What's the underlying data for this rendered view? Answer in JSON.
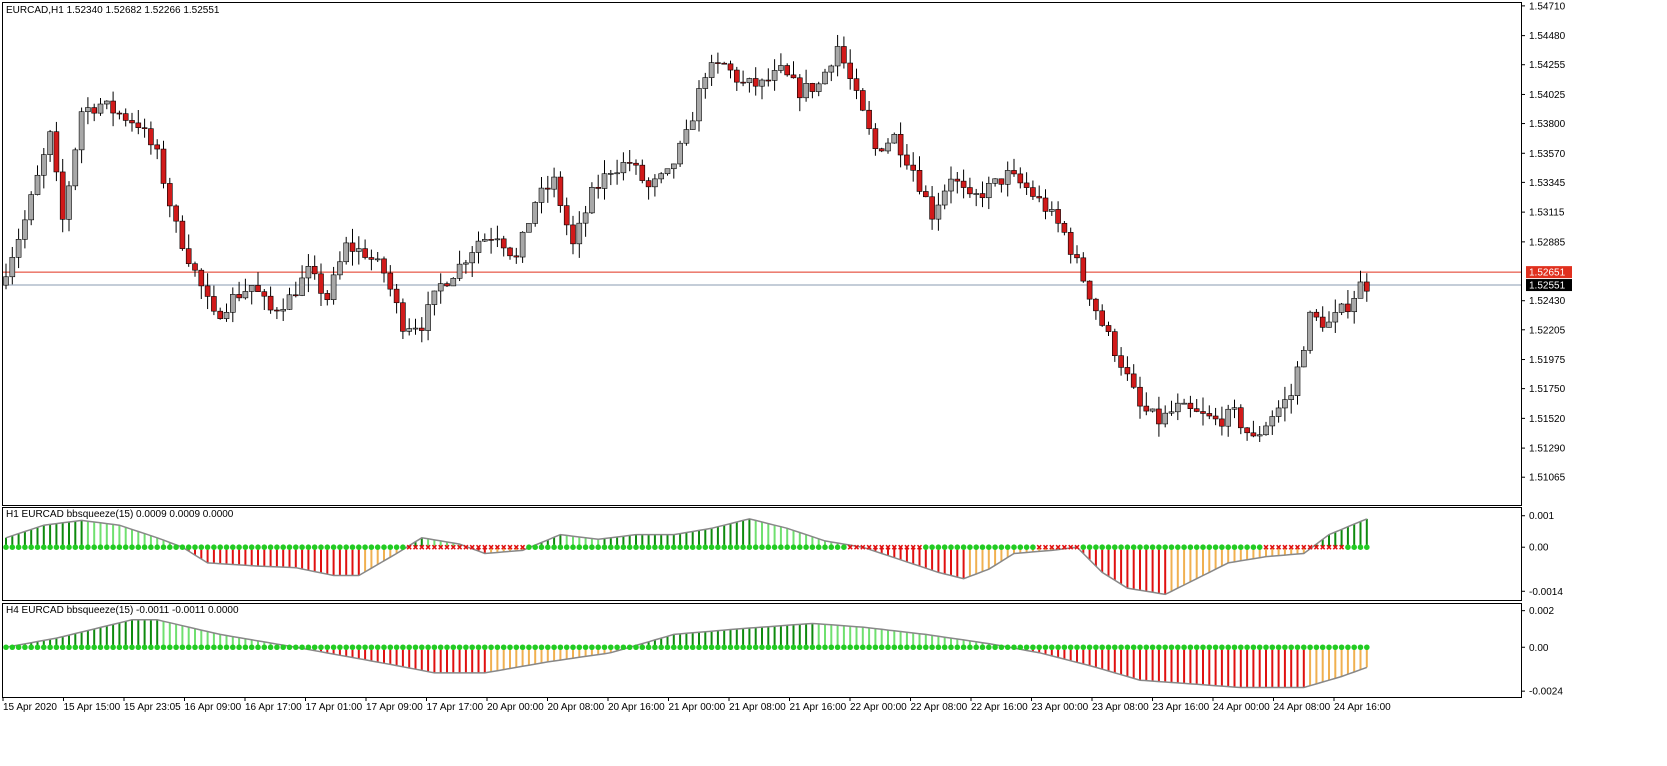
{
  "chart_data": [
    {
      "type": "candlestick",
      "title": "EURCAD,H1  1.52340 1.52682 1.52266 1.52551",
      "ylim": [
        1.5085,
        1.5474
      ],
      "y_ticks": [
        "1.54710",
        "1.54480",
        "1.54255",
        "1.54025",
        "1.53800",
        "1.53570",
        "1.53345",
        "1.53115",
        "1.52885",
        "1.52430",
        "1.52205",
        "1.51975",
        "1.51750",
        "1.51520",
        "1.51290",
        "1.51065"
      ],
      "h_lines": [
        {
          "label": "1.52651",
          "value": 1.52651,
          "color": "#e0301e"
        },
        {
          "label": "1.52551",
          "value": 1.52551,
          "color": "#8a9bb0"
        }
      ],
      "bull_color": "#a8a8a8",
      "bear_color": "#d11a1a",
      "anchors": [
        [
          0,
          1.5255
        ],
        [
          4,
          1.5305
        ],
        [
          8,
          1.537
        ],
        [
          10,
          1.5305
        ],
        [
          13,
          1.539
        ],
        [
          16,
          1.5395
        ],
        [
          18,
          1.539
        ],
        [
          22,
          1.538
        ],
        [
          25,
          1.5355
        ],
        [
          28,
          1.53
        ],
        [
          31,
          1.5265
        ],
        [
          34,
          1.523
        ],
        [
          37,
          1.5245
        ],
        [
          40,
          1.5255
        ],
        [
          43,
          1.5235
        ],
        [
          46,
          1.5245
        ],
        [
          49,
          1.5265
        ],
        [
          52,
          1.5245
        ],
        [
          55,
          1.5285
        ],
        [
          58,
          1.528
        ],
        [
          61,
          1.5265
        ],
        [
          64,
          1.5225
        ],
        [
          67,
          1.5225
        ],
        [
          70,
          1.5255
        ],
        [
          73,
          1.527
        ],
        [
          76,
          1.529
        ],
        [
          79,
          1.5295
        ],
        [
          82,
          1.5275
        ],
        [
          85,
          1.532
        ],
        [
          88,
          1.5335
        ],
        [
          91,
          1.5285
        ],
        [
          94,
          1.5325
        ],
        [
          97,
          1.5345
        ],
        [
          100,
          1.535
        ],
        [
          103,
          1.533
        ],
        [
          106,
          1.534
        ],
        [
          109,
          1.537
        ],
        [
          112,
          1.542
        ],
        [
          115,
          1.5425
        ],
        [
          118,
          1.541
        ],
        [
          121,
          1.541
        ],
        [
          124,
          1.542
        ],
        [
          127,
          1.5405
        ],
        [
          130,
          1.541
        ],
        [
          133,
          1.544
        ],
        [
          136,
          1.54
        ],
        [
          139,
          1.536
        ],
        [
          142,
          1.537
        ],
        [
          145,
          1.5345
        ],
        [
          148,
          1.531
        ],
        [
          151,
          1.534
        ],
        [
          154,
          1.532
        ],
        [
          157,
          1.533
        ],
        [
          160,
          1.534
        ],
        [
          163,
          1.533
        ],
        [
          166,
          1.5315
        ],
        [
          169,
          1.5295
        ],
        [
          172,
          1.526
        ],
        [
          175,
          1.5225
        ],
        [
          178,
          1.5195
        ],
        [
          181,
          1.516
        ],
        [
          184,
          1.515
        ],
        [
          187,
          1.516
        ],
        [
          190,
          1.5155
        ],
        [
          193,
          1.515
        ],
        [
          196,
          1.5155
        ],
        [
          199,
          1.5135
        ],
        [
          202,
          1.5155
        ],
        [
          205,
          1.517
        ],
        [
          208,
          1.523
        ],
        [
          211,
          1.5225
        ],
        [
          214,
          1.524
        ],
        [
          216,
          1.5255
        ]
      ]
    },
    {
      "type": "histogram",
      "title": "H1 EURCAD bbsqueeze(15) 0.0009 0.0009 0.0000",
      "ylim": [
        -0.00155,
        0.00115
      ],
      "y_ticks": [
        "0.001",
        "0.00",
        "-0.0014"
      ],
      "colors": {
        "pos_strong": "#0e8a0e",
        "pos_weak": "#6fe06f",
        "neg_strong": "#e01010",
        "neg_weak": "#f0b050",
        "squeeze_on": "#e01010",
        "squeeze_off": "#22cc22",
        "line": "#888888"
      },
      "anchors": [
        [
          0,
          0.0003
        ],
        [
          6,
          0.0007
        ],
        [
          12,
          0.00085
        ],
        [
          18,
          0.0007
        ],
        [
          24,
          0.0003
        ],
        [
          28,
          0.0
        ],
        [
          32,
          -0.0005
        ],
        [
          36,
          -0.00055
        ],
        [
          40,
          -0.0006
        ],
        [
          46,
          -0.00065
        ],
        [
          52,
          -0.0009
        ],
        [
          56,
          -0.0009
        ],
        [
          62,
          -0.0002
        ],
        [
          66,
          0.0003
        ],
        [
          72,
          0.0001
        ],
        [
          76,
          -0.0002
        ],
        [
          82,
          -0.0001
        ],
        [
          88,
          0.0004
        ],
        [
          94,
          0.00025
        ],
        [
          100,
          0.0004
        ],
        [
          106,
          0.0004
        ],
        [
          112,
          0.0006
        ],
        [
          118,
          0.0009
        ],
        [
          124,
          0.0006
        ],
        [
          130,
          0.0002
        ],
        [
          136,
          0.0
        ],
        [
          142,
          -0.0004
        ],
        [
          148,
          -0.0008
        ],
        [
          152,
          -0.001
        ],
        [
          156,
          -0.0007
        ],
        [
          160,
          -0.0002
        ],
        [
          166,
          -0.0001
        ],
        [
          170,
          0.0
        ],
        [
          174,
          -0.0008
        ],
        [
          178,
          -0.0013
        ],
        [
          184,
          -0.0015
        ],
        [
          188,
          -0.0011
        ],
        [
          194,
          -0.0005
        ],
        [
          200,
          -0.0003
        ],
        [
          206,
          -0.0002
        ],
        [
          210,
          0.0004
        ],
        [
          216,
          0.0009
        ]
      ],
      "squeeze_on_ranges": [
        [
          64,
          82
        ],
        [
          134,
          145
        ],
        [
          164,
          170
        ],
        [
          200,
          212
        ]
      ]
    },
    {
      "type": "histogram",
      "title": "H4 EURCAD bbsqueeze(15) -0.0011 -0.0011 0.0000",
      "ylim": [
        -0.0025,
        0.0022
      ],
      "y_ticks": [
        "0.002",
        "0.00",
        "-0.0024"
      ],
      "colors": {
        "pos_strong": "#0e8a0e",
        "pos_weak": "#6fe06f",
        "neg_strong": "#e01010",
        "neg_weak": "#f0b050",
        "squeeze_on": "#e01010",
        "squeeze_off": "#22cc22",
        "line": "#888888"
      },
      "anchors": [
        [
          0,
          0.0
        ],
        [
          8,
          0.0005
        ],
        [
          14,
          0.001
        ],
        [
          20,
          0.0015
        ],
        [
          24,
          0.0015
        ],
        [
          34,
          0.0007
        ],
        [
          46,
          0.0
        ],
        [
          54,
          -0.0005
        ],
        [
          62,
          -0.001
        ],
        [
          68,
          -0.0014
        ],
        [
          76,
          -0.0014
        ],
        [
          86,
          -0.0008
        ],
        [
          96,
          -0.0003
        ],
        [
          106,
          0.0007
        ],
        [
          116,
          0.001
        ],
        [
          128,
          0.0013
        ],
        [
          136,
          0.0011
        ],
        [
          146,
          0.0007
        ],
        [
          156,
          0.0002
        ],
        [
          164,
          -0.0003
        ],
        [
          172,
          -0.001
        ],
        [
          180,
          -0.0018
        ],
        [
          188,
          -0.002
        ],
        [
          196,
          -0.0022
        ],
        [
          206,
          -0.0022
        ],
        [
          212,
          -0.0016
        ],
        [
          216,
          -0.0011
        ]
      ],
      "squeeze_on_ranges": []
    }
  ],
  "x_axis": {
    "labels": [
      "15 Apr 2020",
      "15 Apr 15:00",
      "15 Apr 23:05",
      "16 Apr 09:00",
      "16 Apr 17:00",
      "17 Apr 01:00",
      "17 Apr 09:00",
      "17 Apr 17:00",
      "20 Apr 00:00",
      "20 Apr 08:00",
      "20 Apr 16:00",
      "21 Apr 00:00",
      "21 Apr 08:00",
      "21 Apr 16:00",
      "22 Apr 00:00",
      "22 Apr 08:00",
      "22 Apr 16:00",
      "23 Apr 00:00",
      "23 Apr 08:00",
      "23 Apr 16:00",
      "24 Apr 00:00",
      "24 Apr 08:00",
      "24 Apr 16:00"
    ]
  }
}
